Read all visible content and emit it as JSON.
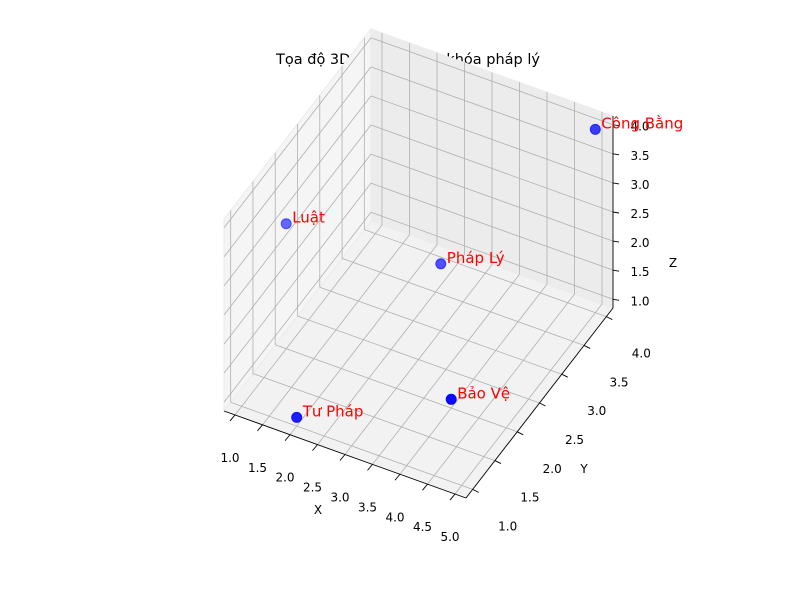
{
  "chart_data": {
    "type": "scatter3d",
    "title": "Tọa độ 3D biểu diễn từ khóa pháp lý",
    "xlabel": "X",
    "ylabel": "Y",
    "zlabel": "Z",
    "xlim": [
      0.8,
      5.2
    ],
    "ylim": [
      0.85,
      4.15
    ],
    "zlim": [
      0.85,
      4.15
    ],
    "x_ticks": [
      1.0,
      1.5,
      2.0,
      2.5,
      3.0,
      3.5,
      4.0,
      4.5,
      5.0
    ],
    "y_ticks": [
      1.0,
      1.5,
      2.0,
      2.5,
      3.0,
      3.5,
      4.0
    ],
    "z_ticks": [
      1.0,
      1.5,
      2.0,
      2.5,
      3.0,
      3.5,
      4.0
    ],
    "x_tick_labels": [
      "1.0",
      "1.5",
      "2.0",
      "2.5",
      "3.0",
      "3.5",
      "4.0",
      "4.5",
      "5.0"
    ],
    "y_tick_labels": [
      "1.0",
      "1.5",
      "2.0",
      "2.5",
      "3.0",
      "3.5",
      "4.0"
    ],
    "z_tick_labels": [
      "1.0",
      "1.5",
      "2.0",
      "2.5",
      "3.0",
      "3.5",
      "4.0"
    ],
    "grid": true,
    "marker_color": "#0000ff",
    "label_color": "#ff0000",
    "points": [
      {
        "label": "Luật",
        "x": 1,
        "y": 2,
        "z": 3
      },
      {
        "label": "Tư Pháp",
        "x": 2,
        "y": 1,
        "z": 1
      },
      {
        "label": "Pháp Lý",
        "x": 3,
        "y": 3,
        "z": 2
      },
      {
        "label": "Bảo Vệ",
        "x": 4,
        "y": 2,
        "z": 1
      },
      {
        "label": "Công Bằng",
        "x": 5,
        "y": 4,
        "z": 4
      }
    ]
  }
}
